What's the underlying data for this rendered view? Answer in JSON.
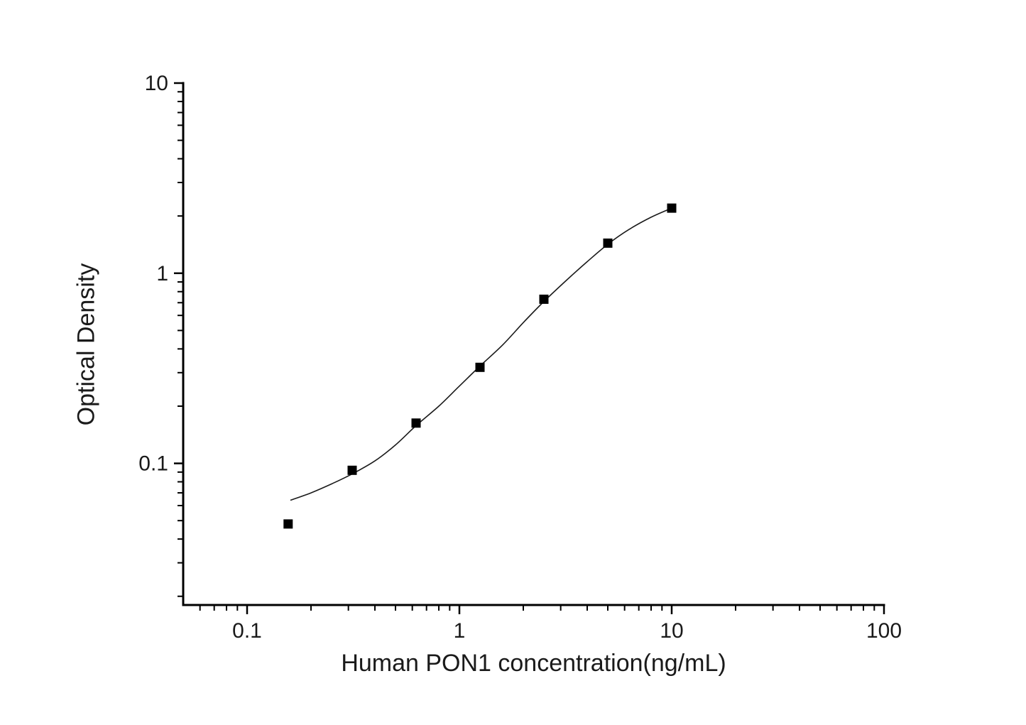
{
  "figure": {
    "background_color": "#ffffff",
    "axis_color": "#000000",
    "text_color": "#1a1a1a",
    "marker_color": "#000000",
    "curve_color": "#1a1a1a"
  },
  "chart_data": {
    "type": "scatter",
    "title": "",
    "xlabel": "Human PON1 concentration(ng/mL)",
    "ylabel": "Optical Density",
    "x_scale": "log",
    "y_scale": "log",
    "xlim": [
      0.05,
      100
    ],
    "ylim": [
      0.018,
      10
    ],
    "x_ticks": [
      0.1,
      1,
      10,
      100
    ],
    "x_tick_labels": [
      "0.1",
      "1",
      "10",
      "100"
    ],
    "y_ticks": [
      0.1,
      1,
      10
    ],
    "y_tick_labels": [
      "0.1",
      "1",
      "10"
    ],
    "grid": false,
    "legend": "none",
    "series": [
      {
        "name": "standard-points",
        "kind": "scatter",
        "marker": "filled-square",
        "x": [
          0.156,
          0.3125,
          0.625,
          1.25,
          2.5,
          5,
          10
        ],
        "y": [
          0.048,
          0.092,
          0.163,
          0.32,
          0.73,
          1.44,
          2.2
        ]
      },
      {
        "name": "fit-curve",
        "kind": "line",
        "x": [
          0.16,
          0.2,
          0.25,
          0.3125,
          0.4,
          0.5,
          0.625,
          0.8,
          1.0,
          1.25,
          1.6,
          2.0,
          2.5,
          3.2,
          4.0,
          5.0,
          6.3,
          8.0,
          10
        ],
        "y": [
          0.064,
          0.07,
          0.078,
          0.088,
          0.103,
          0.125,
          0.158,
          0.2,
          0.255,
          0.325,
          0.42,
          0.55,
          0.71,
          0.92,
          1.15,
          1.42,
          1.7,
          1.97,
          2.2
        ]
      }
    ]
  }
}
